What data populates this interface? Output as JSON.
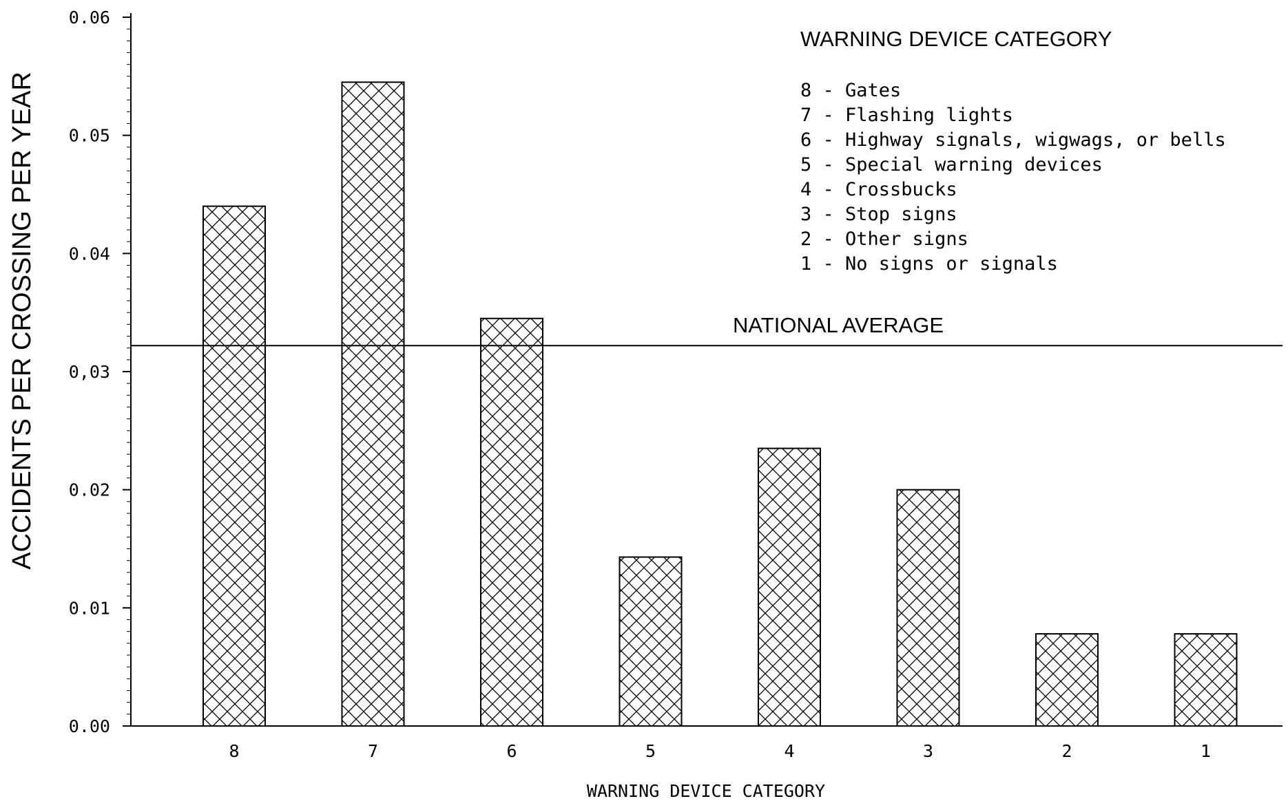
{
  "chart_data": {
    "type": "bar",
    "title": "",
    "xlabel": "WARNING DEVICE CATEGORY",
    "ylabel": "ACCIDENTS PER CROSSING PER YEAR",
    "categories": [
      "8",
      "7",
      "6",
      "5",
      "4",
      "3",
      "2",
      "1"
    ],
    "values": [
      0.044,
      0.0545,
      0.0345,
      0.0143,
      0.0235,
      0.02,
      0.0078,
      0.0078
    ],
    "ylim": [
      0,
      0.06
    ],
    "yticks": [
      "0.00",
      "0.01",
      "0.02",
      "0,03",
      "0.04",
      "0.05",
      "0.06"
    ],
    "grid": false,
    "bar_fill": "crosshatch",
    "reference_line": {
      "label": "NATIONAL AVERAGE",
      "value": 0.0322
    },
    "legend": {
      "title": "WARNING DEVICE CATEGORY",
      "position": "top-right",
      "entries": [
        "8 - Gates",
        "7 - Flashing lights",
        "6 - Highway signals, wigwags, or bells",
        "5 - Special warning devices",
        "4 - Crossbucks",
        "3 - Stop signs",
        "2 - Other signs",
        "1 - No signs or signals"
      ]
    }
  }
}
